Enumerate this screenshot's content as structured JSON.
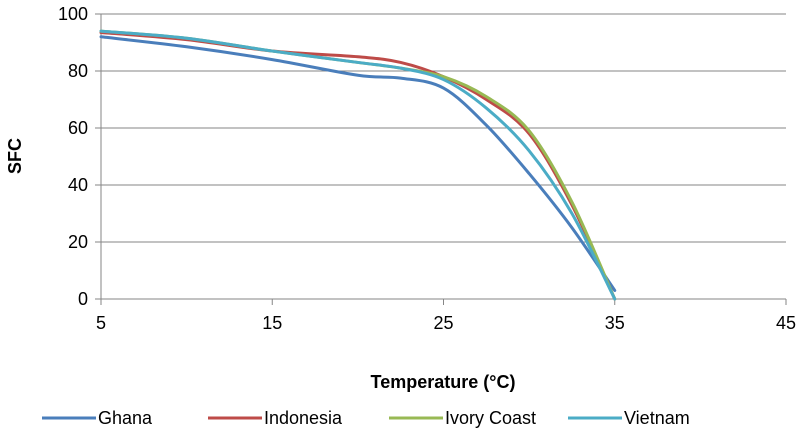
{
  "chart_data": {
    "type": "line",
    "title": "",
    "xlabel": "Temperature (°C)",
    "ylabel": "SFC",
    "xlim": [
      5,
      45
    ],
    "ylim": [
      0,
      100
    ],
    "x_ticks": [
      5,
      15,
      25,
      35,
      45
    ],
    "y_ticks": [
      0,
      20,
      40,
      60,
      80,
      100
    ],
    "x_tick_labels": [
      "5",
      "15",
      "25",
      "35",
      "45"
    ],
    "y_tick_labels": [
      "0",
      "20",
      "40",
      "60",
      "80",
      "100"
    ],
    "grid": "horizontal",
    "legend_position": "bottom",
    "series": [
      {
        "name": "Ghana",
        "color": "#4a7ebb",
        "x": [
          5,
          10,
          15,
          20,
          22.5,
          25,
          27.5,
          30,
          32.5,
          35
        ],
        "y": [
          92,
          88.5,
          84,
          78.5,
          77.5,
          74,
          61,
          44,
          25,
          3
        ]
      },
      {
        "name": "Indonesia",
        "color": "#be4b48",
        "x": [
          5,
          10,
          15,
          20,
          22.5,
          25,
          27.5,
          30,
          32.5,
          35
        ],
        "y": [
          93.5,
          91,
          87,
          85,
          83,
          78,
          70,
          58,
          33,
          0
        ]
      },
      {
        "name": "Ivory Coast",
        "color": "#98b954",
        "x": [
          5,
          10,
          15,
          20,
          22.5,
          25,
          27.5,
          30,
          32.5,
          35
        ],
        "y": [
          94,
          91.5,
          87,
          83,
          81,
          78,
          71,
          59,
          34,
          0
        ]
      },
      {
        "name": "Vietnam",
        "color": "#4bacc6",
        "x": [
          5,
          10,
          15,
          20,
          22.5,
          25,
          27.5,
          30,
          32.5,
          35
        ],
        "y": [
          94,
          91.5,
          87,
          83,
          81,
          77,
          67,
          52,
          30,
          0
        ]
      }
    ]
  }
}
